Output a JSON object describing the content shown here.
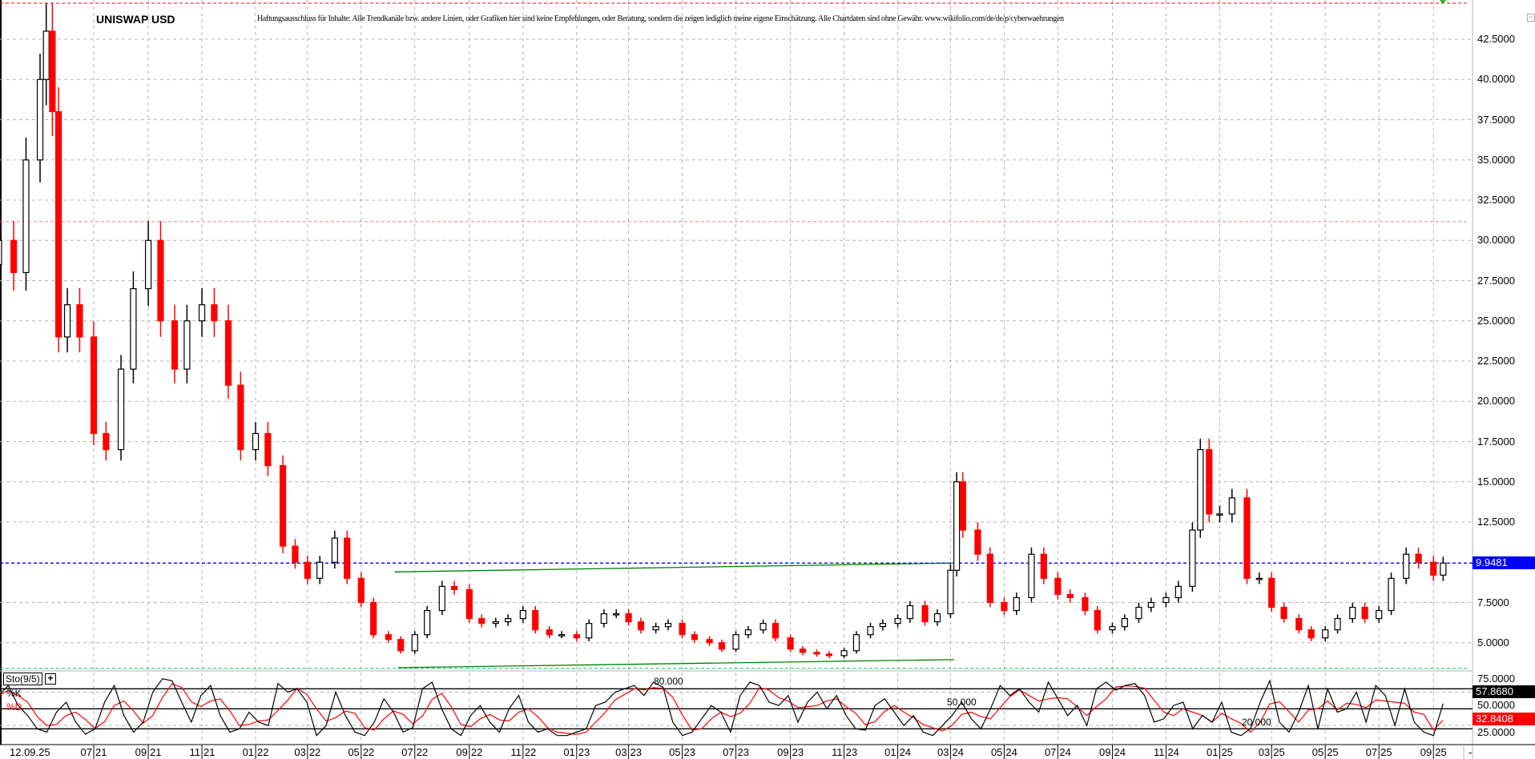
{
  "header": {
    "title": "UNISWAP USD",
    "disclaimer": "Haftungsausschluss für Inhalte: Alle Trendkanäle bzw. andere Linien, oder Grafiken hier sind keine Empfehlungen, oder Beratung, sondern die zeigen lediglich meine eigene Einschätzung. Alle Chartdaten sind ohne Gewähr.  www.wikifolio.com/de/de/p/cyberwaehrungen"
  },
  "colors": {
    "up": "#000000",
    "down": "#ff0000",
    "grid": "#b4b4b4",
    "current_price": "#0000ff",
    "trendline": "#008000",
    "k_line": "#000000",
    "d_line": "#ff0000"
  },
  "chart_data": [
    {
      "type": "candlestick",
      "title": "UNISWAP USD",
      "y_ticks": [
        "42.5000",
        "40.0000",
        "37.5000",
        "35.0000",
        "32.5000",
        "30.0000",
        "27.5000",
        "25.0000",
        "22.5000",
        "20.0000",
        "17.5000",
        "15.0000",
        "12.5000",
        "7.5000",
        "5.0000"
      ],
      "y_tick_values": [
        42.5,
        40,
        37.5,
        35,
        32.5,
        30,
        27.5,
        25,
        22.5,
        20,
        17.5,
        15,
        12.5,
        7.5,
        5
      ],
      "ylim": [
        3.3,
        44.8
      ],
      "grid": true,
      "current_price": "9.9481",
      "current_price_value": 9.9481,
      "horizontal_lines": [
        {
          "value": 44.74,
          "color": "#ff0000",
          "style": "dashed"
        },
        {
          "value": 31.16,
          "color": "#f08080",
          "style": "dashed"
        },
        {
          "value": 3.4,
          "color": "#00c060",
          "style": "dashed"
        }
      ],
      "trendlines": [
        {
          "from": [
            "2022-06-08",
            9.4
          ],
          "to": [
            "2024-03-05",
            9.95
          ]
        },
        {
          "from": [
            "2022-06-12",
            3.45
          ],
          "to": [
            "2024-03-05",
            3.95
          ]
        }
      ],
      "dates": [
        "2021-03-15",
        "2021-04-01",
        "2021-04-15",
        "2021-05-01",
        "2021-05-08",
        "2021-05-15",
        "2021-05-22",
        "2021-06-01",
        "2021-06-15",
        "2021-07-01",
        "2021-07-15",
        "2021-08-01",
        "2021-08-15",
        "2021-09-01",
        "2021-09-15",
        "2021-10-01",
        "2021-10-15",
        "2021-11-01",
        "2021-11-15",
        "2021-12-01",
        "2021-12-15",
        "2022-01-01",
        "2022-01-15",
        "2022-02-01",
        "2022-02-15",
        "2022-03-01",
        "2022-03-15",
        "2022-04-01",
        "2022-04-15",
        "2022-05-01",
        "2022-05-15",
        "2022-06-01",
        "2022-06-15",
        "2022-07-01",
        "2022-07-15",
        "2022-08-01",
        "2022-08-15",
        "2022-09-01",
        "2022-09-15",
        "2022-10-01",
        "2022-10-15",
        "2022-11-01",
        "2022-11-15",
        "2022-12-01",
        "2022-12-15",
        "2023-01-01",
        "2023-01-15",
        "2023-02-01",
        "2023-02-15",
        "2023-03-01",
        "2023-03-15",
        "2023-04-01",
        "2023-04-15",
        "2023-05-01",
        "2023-05-15",
        "2023-06-01",
        "2023-06-15",
        "2023-07-01",
        "2023-07-15",
        "2023-08-01",
        "2023-08-15",
        "2023-09-01",
        "2023-09-15",
        "2023-10-01",
        "2023-10-15",
        "2023-11-01",
        "2023-11-15",
        "2023-12-01",
        "2023-12-15",
        "2024-01-01",
        "2024-01-15",
        "2024-02-01",
        "2024-02-15",
        "2024-03-01",
        "2024-03-08",
        "2024-03-15",
        "2024-04-01",
        "2024-04-15",
        "2024-05-01",
        "2024-05-15",
        "2024-06-01",
        "2024-06-15",
        "2024-07-01",
        "2024-07-15",
        "2024-08-01",
        "2024-08-15",
        "2024-09-01",
        "2024-09-15",
        "2024-10-01",
        "2024-10-15",
        "2024-11-01",
        "2024-11-15",
        "2024-12-01",
        "2024-12-10",
        "2024-12-20",
        "2025-01-01",
        "2025-01-15",
        "2025-02-01",
        "2025-02-15",
        "2025-03-01",
        "2025-03-15",
        "2025-04-01",
        "2025-04-15",
        "2025-05-01",
        "2025-05-15",
        "2025-06-01",
        "2025-06-15",
        "2025-07-01",
        "2025-07-15",
        "2025-08-01",
        "2025-08-15",
        "2025-09-01",
        "2025-09-12"
      ],
      "close": [
        30,
        28,
        35,
        40,
        43,
        38,
        24,
        26,
        24,
        18,
        17,
        22,
        27,
        30,
        25,
        22,
        25,
        26,
        25,
        21,
        17,
        18,
        16,
        11,
        10,
        9,
        10,
        11.5,
        9,
        7.5,
        5.5,
        5.2,
        4.5,
        5.5,
        7,
        8.5,
        8.3,
        6.5,
        6.2,
        6.3,
        6.5,
        7,
        5.8,
        5.5,
        5.5,
        5.3,
        6.2,
        6.8,
        6.8,
        6.3,
        5.8,
        6,
        6.2,
        5.5,
        5.2,
        5,
        4.6,
        5.5,
        5.8,
        6.2,
        5.3,
        4.6,
        4.4,
        4.3,
        4.2,
        4.5,
        5.5,
        6,
        6.2,
        6.5,
        7.3,
        6.3,
        6.8,
        9.5,
        15,
        12,
        10.5,
        7.5,
        7,
        7.8,
        10.5,
        9,
        8,
        7.8,
        7,
        5.8,
        6,
        6.5,
        7.2,
        7.5,
        7.8,
        8.5,
        12,
        17,
        13,
        13,
        14,
        9,
        9,
        7.2,
        6.5,
        5.8,
        5.3,
        5.8,
        6.5,
        7.2,
        6.5,
        7,
        9,
        10.5,
        10,
        9.2,
        9.9481
      ]
    },
    {
      "type": "line",
      "title": "Sto(9/5)",
      "series_names": [
        "%K",
        "%D"
      ],
      "levels": [
        {
          "value": 80,
          "label": "80.000"
        },
        {
          "value": 50,
          "label": "50.000"
        },
        {
          "value": 20,
          "label": "20.000"
        }
      ],
      "y_ticks": [
        "75.0000",
        "50.0000",
        "25.0000"
      ],
      "y_tick_values": [
        75,
        50,
        25
      ],
      "ylim": [
        0,
        100
      ],
      "last_k": "57.8680",
      "last_d": "32.8408",
      "k": [
        70,
        85,
        55,
        40,
        20,
        15,
        45,
        60,
        30,
        12,
        20,
        60,
        85,
        40,
        15,
        30,
        75,
        95,
        92,
        60,
        30,
        70,
        85,
        40,
        15,
        20,
        45,
        30,
        25,
        88,
        75,
        80,
        60,
        10,
        25,
        75,
        40,
        15,
        10,
        30,
        65,
        45,
        15,
        22,
        80,
        90,
        50,
        20,
        10,
        40,
        55,
        30,
        15,
        50,
        70,
        30,
        15,
        20,
        10,
        10,
        15,
        20,
        55,
        60,
        75,
        80,
        85,
        70,
        90,
        82,
        30,
        10,
        15,
        35,
        55,
        45,
        15,
        70,
        90,
        85,
        60,
        55,
        70,
        30,
        60,
        75,
        50,
        70,
        40,
        20,
        18,
        55,
        65,
        45,
        25,
        40,
        15,
        10,
        25,
        40,
        60,
        35,
        20,
        50,
        85,
        70,
        80,
        60,
        45,
        90,
        65,
        40,
        55,
        25,
        80,
        90,
        78,
        85,
        88,
        70,
        30,
        35,
        55,
        60,
        20,
        40,
        30,
        60,
        15,
        10,
        20,
        60,
        92,
        30,
        15,
        45,
        85,
        20,
        80,
        45,
        50,
        75,
        30,
        85,
        70,
        25,
        80,
        30,
        15,
        10,
        57.868
      ]
    }
  ],
  "x_ticks": [
    {
      "month": "07",
      "year": "21",
      "date": "2021-07-01"
    },
    {
      "month": "09",
      "year": "21",
      "date": "2021-09-01"
    },
    {
      "month": "11",
      "year": "21",
      "date": "2021-11-01"
    },
    {
      "month": "01",
      "year": "22",
      "date": "2022-01-01"
    },
    {
      "month": "03",
      "year": "22",
      "date": "2022-03-01"
    },
    {
      "month": "05",
      "year": "22",
      "date": "2022-05-01"
    },
    {
      "month": "07",
      "year": "22",
      "date": "2022-07-01"
    },
    {
      "month": "09",
      "year": "22",
      "date": "2022-09-01"
    },
    {
      "month": "11",
      "year": "22",
      "date": "2022-11-01"
    },
    {
      "month": "01",
      "year": "23",
      "date": "2023-01-01"
    },
    {
      "month": "03",
      "year": "23",
      "date": "2023-03-01"
    },
    {
      "month": "05",
      "year": "23",
      "date": "2023-05-01"
    },
    {
      "month": "07",
      "year": "23",
      "date": "2023-07-01"
    },
    {
      "month": "09",
      "year": "23",
      "date": "2023-09-01"
    },
    {
      "month": "11",
      "year": "23",
      "date": "2023-11-01"
    },
    {
      "month": "01",
      "year": "24",
      "date": "2024-01-01"
    },
    {
      "month": "03",
      "year": "24",
      "date": "2024-03-01"
    },
    {
      "month": "05",
      "year": "24",
      "date": "2024-05-01"
    },
    {
      "month": "07",
      "year": "24",
      "date": "2024-07-01"
    },
    {
      "month": "09",
      "year": "24",
      "date": "2024-09-01"
    },
    {
      "month": "11",
      "year": "24",
      "date": "2024-11-01"
    },
    {
      "month": "01",
      "year": "25",
      "date": "2025-01-01"
    },
    {
      "month": "03",
      "year": "25",
      "date": "2025-03-01"
    },
    {
      "month": "05",
      "year": "25",
      "date": "2025-05-01"
    },
    {
      "month": "07",
      "year": "25",
      "date": "2025-07-01"
    },
    {
      "month": "09",
      "year": "25",
      "date": "2025-09-01"
    }
  ],
  "footer": {
    "current_date": "12.09.25",
    "scroll_label": "-"
  },
  "panel": {
    "sto_label": "Sto(9/5)",
    "plus_label": "+",
    "k_label": "%K",
    "d_label": "%D",
    "collapse_label": "−"
  }
}
